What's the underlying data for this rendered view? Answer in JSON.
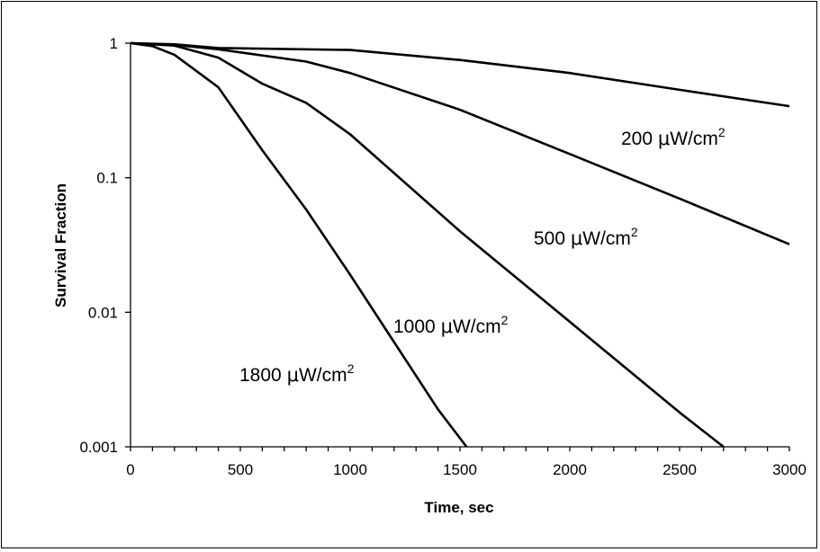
{
  "chart_data": {
    "type": "line",
    "xlabel": "Time, sec",
    "ylabel": "Survival Fraction",
    "xlim": [
      0,
      3000
    ],
    "ylim": [
      0.001,
      1
    ],
    "yscale": "log",
    "grid": false,
    "legend": "none (inline labels)",
    "x_ticks": [
      0,
      500,
      1000,
      1500,
      2000,
      2500,
      3000
    ],
    "x_tick_labels": [
      "0",
      "500",
      "1000",
      "1500",
      "2000",
      "2500",
      "3000"
    ],
    "y_ticks": [
      1,
      0.1,
      0.01,
      0.001
    ],
    "y_tick_labels": [
      "1",
      "0.1",
      "0.01",
      "0.001"
    ],
    "line_color": "#000000",
    "series": [
      {
        "name": "200 μW/cm²",
        "label_parts": [
          "200 ",
          "μ",
          "W/cm",
          "2"
        ],
        "x": [
          0,
          200,
          400,
          1000,
          1500,
          2000,
          2500,
          3000
        ],
        "y": [
          1,
          0.98,
          0.92,
          0.89,
          0.75,
          0.6,
          0.45,
          0.34
        ]
      },
      {
        "name": "500 μW/cm²",
        "label_parts": [
          "500 ",
          "μ",
          "W/cm",
          "2"
        ],
        "x": [
          0,
          200,
          400,
          800,
          1000,
          1500,
          2000,
          2500,
          3000
        ],
        "y": [
          1,
          0.97,
          0.9,
          0.73,
          0.6,
          0.32,
          0.15,
          0.07,
          0.032
        ]
      },
      {
        "name": "1000 μW/cm²",
        "label_parts": [
          "1000 ",
          "μ",
          "W/cm",
          "2"
        ],
        "x": [
          0,
          200,
          400,
          600,
          800,
          1000,
          1500,
          2000,
          2500,
          2700
        ],
        "y": [
          1,
          0.96,
          0.78,
          0.5,
          0.36,
          0.21,
          0.04,
          0.0085,
          0.0018,
          0.001
        ]
      },
      {
        "name": "1800 μW/cm²",
        "label_parts": [
          "1800 ",
          "μ",
          "W/cm",
          "2"
        ],
        "x": [
          0,
          100,
          200,
          400,
          600,
          800,
          1000,
          1200,
          1400,
          1530
        ],
        "y": [
          1,
          0.95,
          0.82,
          0.47,
          0.16,
          0.058,
          0.019,
          0.006,
          0.0019,
          0.001
        ]
      }
    ]
  }
}
